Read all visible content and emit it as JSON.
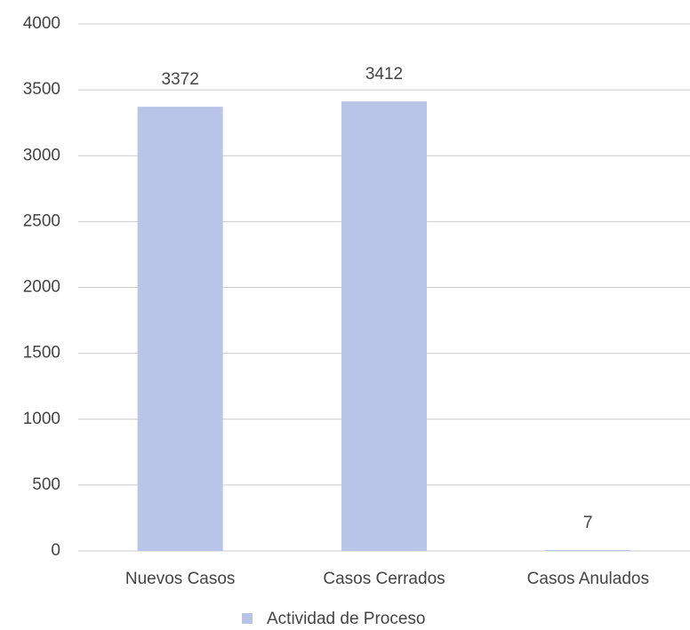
{
  "chart_data": {
    "type": "bar",
    "categories": [
      "Nuevos Casos",
      "Casos Cerrados",
      "Casos Anulados"
    ],
    "series": [
      {
        "name": "Actividad de Proceso",
        "color": "#b8c4e8",
        "values": [
          3372,
          3412,
          7
        ]
      }
    ],
    "ylim": [
      0,
      4000
    ],
    "yticks": [
      0,
      500,
      1000,
      1500,
      2000,
      2500,
      3000,
      3500,
      4000
    ],
    "grid": true,
    "legend": "bottom",
    "data_labels": true
  }
}
